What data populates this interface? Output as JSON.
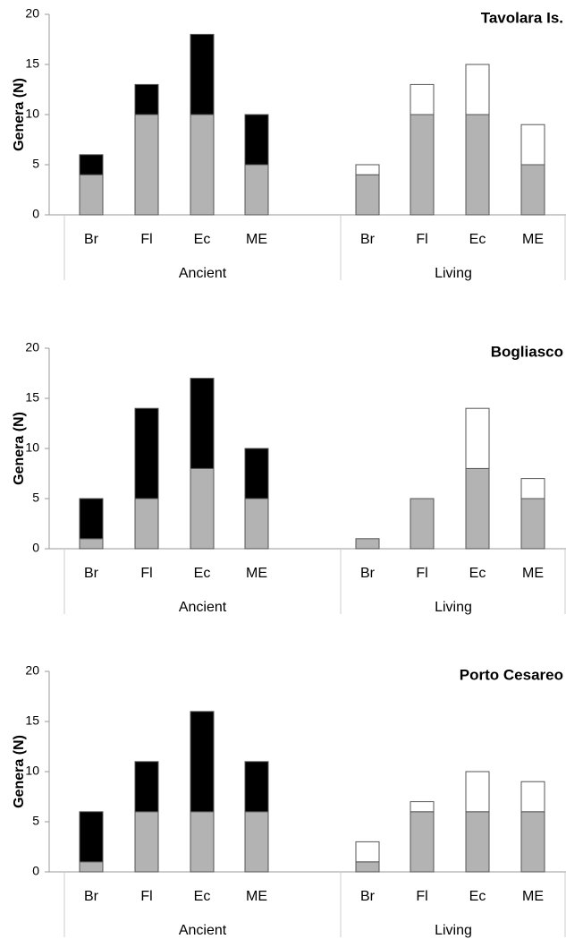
{
  "chart_data": [
    {
      "type": "bar",
      "stacked": true,
      "title": "Tavolara Is.",
      "y_label": "Genera (N)",
      "groups": [
        "Ancient",
        "Living"
      ],
      "categories": [
        "Br",
        "Fl",
        "Ec",
        "ME",
        "Br",
        "Fl",
        "Ec",
        "ME"
      ],
      "series": [
        {
          "color": "#b3b3b3",
          "values": [
            4,
            10,
            10,
            5,
            4,
            10,
            10,
            5
          ]
        },
        {
          "color": "#000000",
          "values": [
            2,
            3,
            8,
            5,
            null,
            null,
            null,
            null
          ]
        },
        {
          "color": "#ffffff",
          "values": [
            null,
            null,
            null,
            null,
            1,
            3,
            5,
            4
          ]
        }
      ],
      "ylim": [
        0,
        20
      ],
      "yticks": [
        0,
        5,
        10,
        15,
        20
      ]
    },
    {
      "type": "bar",
      "stacked": true,
      "title": "Bogliasco",
      "y_label": "Genera (N)",
      "groups": [
        "Ancient",
        "Living"
      ],
      "categories": [
        "Br",
        "Fl",
        "Ec",
        "ME",
        "Br",
        "Fl",
        "Ec",
        "ME"
      ],
      "series": [
        {
          "color": "#b3b3b3",
          "values": [
            1,
            5,
            8,
            5,
            1,
            5,
            8,
            5
          ]
        },
        {
          "color": "#000000",
          "values": [
            4,
            9,
            9,
            5,
            null,
            null,
            null,
            null
          ]
        },
        {
          "color": "#ffffff",
          "values": [
            null,
            null,
            null,
            null,
            0,
            0,
            6,
            2
          ]
        }
      ],
      "ylim": [
        0,
        20
      ],
      "yticks": [
        0,
        5,
        10,
        15,
        20
      ]
    },
    {
      "type": "bar",
      "stacked": true,
      "title": "Porto Cesareo",
      "y_label": "Genera (N)",
      "groups": [
        "Ancient",
        "Living"
      ],
      "categories": [
        "Br",
        "Fl",
        "Ec",
        "ME",
        "Br",
        "Fl",
        "Ec",
        "ME"
      ],
      "series": [
        {
          "color": "#b3b3b3",
          "values": [
            1,
            6,
            6,
            6,
            1,
            6,
            6,
            6
          ]
        },
        {
          "color": "#000000",
          "values": [
            5,
            5,
            10,
            5,
            null,
            null,
            null,
            null
          ]
        },
        {
          "color": "#ffffff",
          "values": [
            null,
            null,
            null,
            null,
            2,
            1,
            4,
            3
          ]
        }
      ],
      "ylim": [
        0,
        20
      ],
      "yticks": [
        0,
        5,
        10,
        15,
        20
      ]
    }
  ]
}
